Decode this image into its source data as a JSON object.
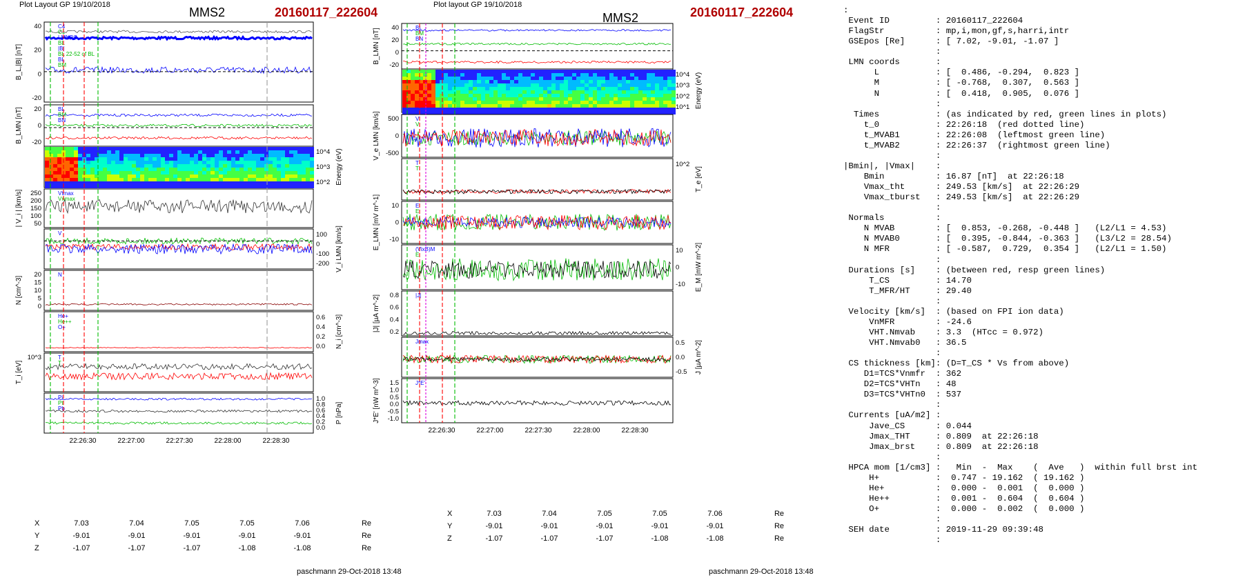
{
  "left_panel": {
    "header_left": "Plot Layout GP 19/10/2018",
    "title": "MMS2",
    "event": "20160117_222604",
    "footer": "paschmann 29-Oct-2018 13:48",
    "panels": [
      {
        "ylabel": "B_L,|B| [nT]",
        "yticks": [
          "40",
          "20",
          "0",
          "-20"
        ],
        "rticks": [],
        "rlabel": "",
        "legend": [
          "C4",
          "C1",
          "LMNBC",
          "BL",
          "|B|",
          "BL 22-52 of BL",
          "BL",
          "BM"
        ]
      },
      {
        "ylabel": "B_LMN [nT]",
        "yticks": [
          "20",
          "0",
          "-20"
        ],
        "rticks": [],
        "rlabel": "",
        "legend": [
          "BL",
          "BM",
          "BN"
        ]
      },
      {
        "ylabel": "",
        "yticks": [],
        "rticks": [
          "10^4",
          "10^3",
          "10^2"
        ],
        "rlabel": "Energy (eV)",
        "legend": []
      },
      {
        "ylabel": "| V_i | [km/s]",
        "yticks": [
          "250",
          "200",
          "150",
          "100",
          "50"
        ],
        "rticks": [],
        "rlabel": "",
        "legend": [
          "Vtmax",
          "Vnmax"
        ]
      },
      {
        "ylabel": "",
        "yticks": [],
        "rticks": [
          "100",
          "0",
          "-100",
          "-200"
        ],
        "rlabel": "V_i LMN [km/s]",
        "legend": [
          "V"
        ]
      },
      {
        "ylabel": "N [cm^-3]",
        "yticks": [
          "20",
          "15",
          "10",
          "5",
          "0"
        ],
        "rticks": [],
        "rlabel": "",
        "legend": [
          "N"
        ]
      },
      {
        "ylabel": "",
        "yticks": [],
        "rticks": [
          "0.6",
          "0.4",
          "0.2",
          "0.0"
        ],
        "rlabel": "N_i [cm^-3]",
        "legend": [
          "He+",
          "He++",
          "O+"
        ]
      },
      {
        "ylabel": "T_i [eV]",
        "yticks": [
          "10^3"
        ],
        "rticks": [],
        "rlabel": "",
        "legend": [
          "T",
          "T"
        ]
      },
      {
        "ylabel": "",
        "yticks": [],
        "rticks": [
          "1.0",
          "0.8",
          "0.6",
          "0.4",
          "0.2",
          "0.0"
        ],
        "rlabel": "P [nPa]",
        "legend": [
          "Pi",
          "Pt",
          "Pb"
        ]
      }
    ],
    "xticks": [
      "22:26:30",
      "22:27:00",
      "22:27:30",
      "22:28:00",
      "22:28:30"
    ],
    "coord_rows": [
      {
        "label": "X",
        "values": [
          "7.03",
          "7.04",
          "7.05",
          "7.05",
          "7.06"
        ],
        "unit": "Re"
      },
      {
        "label": "Y",
        "values": [
          "-9.01",
          "-9.01",
          "-9.01",
          "-9.01",
          "-9.01"
        ],
        "unit": "Re"
      },
      {
        "label": "Z",
        "values": [
          "-1.07",
          "-1.07",
          "-1.07",
          "-1.08",
          "-1.08"
        ],
        "unit": "Re"
      }
    ]
  },
  "right_panel": {
    "header_left": "Plot layout GP 19/10/2018",
    "title": "MMS2",
    "event": "20160117_222604",
    "footer": "paschmann 29-Oct-2018 13:48",
    "panels": [
      {
        "ylabel": "B_LMN [nT]",
        "yticks": [
          "40",
          "20",
          "0",
          "-20"
        ],
        "rticks": [],
        "rlabel": "",
        "legend": [
          "BL",
          "BM",
          "BN"
        ]
      },
      {
        "ylabel": "",
        "yticks": [],
        "rticks": [
          "10^4",
          "10^3",
          "10^2",
          "10^1"
        ],
        "rlabel": "Energy (eV)",
        "legend": []
      },
      {
        "ylabel": "V_e LMN [km/s]",
        "yticks": [
          "500",
          "0",
          "-500"
        ],
        "rticks": [],
        "rlabel": "",
        "legend": [
          "V",
          "V"
        ]
      },
      {
        "ylabel": "",
        "yticks": [],
        "rticks": [
          "10^2"
        ],
        "rlabel": "T_e [eV]",
        "legend": [
          "T",
          "T"
        ]
      },
      {
        "ylabel": "E_LMN [mV m^-1]",
        "yticks": [
          "10",
          "0",
          "-10"
        ],
        "rticks": [],
        "rlabel": "",
        "legend": [
          "E",
          "E"
        ]
      },
      {
        "ylabel": "",
        "yticks": [],
        "rticks": [
          "10",
          "0",
          "-10"
        ],
        "rlabel": "E_M [mW m^-2]",
        "legend": [
          "(VixB)M",
          "E"
        ]
      },
      {
        "ylabel": "|J| [µA m^-2]",
        "yticks": [
          "0.8",
          "0.6",
          "0.4",
          "0.2"
        ],
        "rticks": [],
        "rlabel": "",
        "legend": [
          "|J|"
        ]
      },
      {
        "ylabel": "",
        "yticks": [],
        "rticks": [
          "0.5",
          "0.0",
          "-0.5"
        ],
        "rlabel": "J [µA m^-2]",
        "legend": [
          "Jmax"
        ]
      },
      {
        "ylabel": "J*E' [nW m^-3]",
        "yticks": [
          "1.5",
          "1.0",
          "0.5",
          "0.0",
          "-0.5",
          "-1.0"
        ],
        "rticks": [],
        "rlabel": "",
        "legend": [
          "J*E'"
        ]
      }
    ],
    "xticks": [
      "22:26:30",
      "22:27:00",
      "22:27:30",
      "22:28:00",
      "22:28:30"
    ],
    "coord_rows": [
      {
        "label": "X",
        "values": [
          "7.03",
          "7.04",
          "7.05",
          "7.05",
          "7.06"
        ],
        "unit": "Re"
      },
      {
        "label": "Y",
        "values": [
          "-9.01",
          "-9.01",
          "-9.01",
          "-9.01",
          "-9.01"
        ],
        "unit": "Re"
      },
      {
        "label": "Z",
        "values": [
          "-1.07",
          "-1.07",
          "-1.07",
          "-1.08",
          "-1.08"
        ],
        "unit": "Re"
      }
    ]
  },
  "colors": {
    "blue": "#0000ff",
    "red": "#ff0000",
    "green": "#00bb00",
    "black": "#000000",
    "magenta": "#dd00dd",
    "event": "#b00000"
  },
  "info_text": ":\n Event ID         : 20160117_222604\n FlagStr          : mp,i,mon,gf,s,harri,intr\n GSEpos [Re]      : [ 7.02, -9.01, -1.07 ]\n                  :\n LMN coords       :\n      L           : [  0.486, -0.294,  0.823 ]\n      M           : [ -0.768,  0.307,  0.563 ]\n      N           : [  0.418,  0.905,  0.076 ]\n                  :\n  Times           : (as indicated by red, green lines in plots)\n    t_0           : 22:26:18  (red dotted line)\n    t_MVAB1       : 22:26:08  (leftmost green line)\n    t_MVAB2       : 22:26:37  (rightmost green line)\n                  :\n|Bmin|, |Vmax|    :\n    Bmin          : 16.87 [nT]  at 22:26:18\n    Vmax_tht      : 249.53 [km/s]  at 22:26:29\n    Vmax_tburst   : 249.53 [km/s]  at 22:26:29\n                  :\n Normals          :\n    N MVAB        : [  0.853, -0.268, -0.448 ]   (L2/L1 = 4.53)\n    N MVAB0       : [  0.395, -0.844, -0.363 ]   (L3/L2 = 28.54)\n    N MFR         : [ -0.587,  0.729,  0.354 ]   (L2/L1 = 1.50)\n                  :\n Durations [s]    : (between red, resp green lines)\n     T_CS         : 14.70\n     T_MFR/HT     : 29.40\n                  :\n Velocity [km/s]  : (based on FPI ion data)\n     VnMFR        : -24.6\n     VHT.Nmvab    : 3.3  (HTcc = 0.972)\n     VHT.Nmvab0   : 36.5\n                  :\n CS thickness [km]: (D=T_CS * Vs from above)\n    D1=TCS*Vnmfr  : 362\n    D2=TCS*VHTn   : 48\n    D3=TCS*VHTn0  : 537\n                  :\n Currents [uA/m2] :\n     Jave_CS      : 0.044\n     Jmax_THT     : 0.809  at 22:26:18\n     Jmax_brst    : 0.809  at 22:26:18\n                  :\n HPCA mom [1/cm3] :   Min  -  Max    (  Ave   )  within full brst int\n     H+           :  0.747 - 19.162  ( 19.162 )\n     He+          :  0.000 -  0.001  (  0.000 )\n     He++         :  0.001 -  0.604  (  0.604 )\n     O+           :  0.000 -  0.002  (  0.000 )\n                  :\n SEH date         : 2019-11-29 09:39:48\n                  :"
}
